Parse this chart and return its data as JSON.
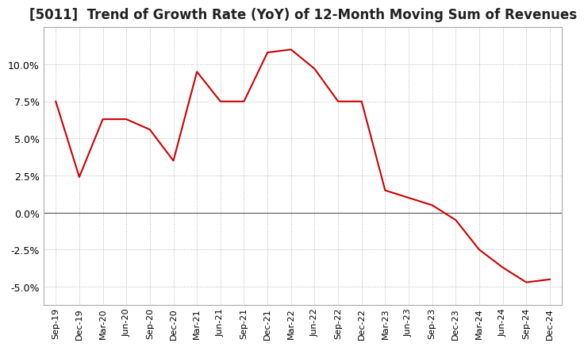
{
  "title": "[5011]  Trend of Growth Rate (YoY) of 12-Month Moving Sum of Revenues",
  "title_fontsize": 12,
  "line_color": "#cc0000",
  "background_color": "#ffffff",
  "plot_background": "#ffffff",
  "grid_color": "#aaaaaa",
  "border_color": "#aaaaaa",
  "x_labels": [
    "Sep-19",
    "Dec-19",
    "Mar-20",
    "Jun-20",
    "Sep-20",
    "Dec-20",
    "Mar-21",
    "Jun-21",
    "Sep-21",
    "Dec-21",
    "Mar-22",
    "Jun-22",
    "Sep-22",
    "Dec-22",
    "Mar-23",
    "Jun-23",
    "Sep-23",
    "Dec-23",
    "Mar-24",
    "Jun-24",
    "Sep-24",
    "Dec-24"
  ],
  "y_values": [
    7.5,
    2.4,
    6.3,
    6.3,
    5.6,
    3.5,
    9.5,
    7.5,
    7.5,
    10.8,
    11.0,
    9.7,
    7.5,
    7.5,
    1.5,
    1.0,
    0.5,
    -0.5,
    -2.5,
    -3.7,
    -4.7,
    -4.5
  ],
  "ylim": [
    -6.25,
    12.5
  ],
  "yticks": [
    -5.0,
    -2.5,
    0.0,
    2.5,
    5.0,
    7.5,
    10.0
  ],
  "zero_line_color": "#555555",
  "tick_fontsize": 9
}
